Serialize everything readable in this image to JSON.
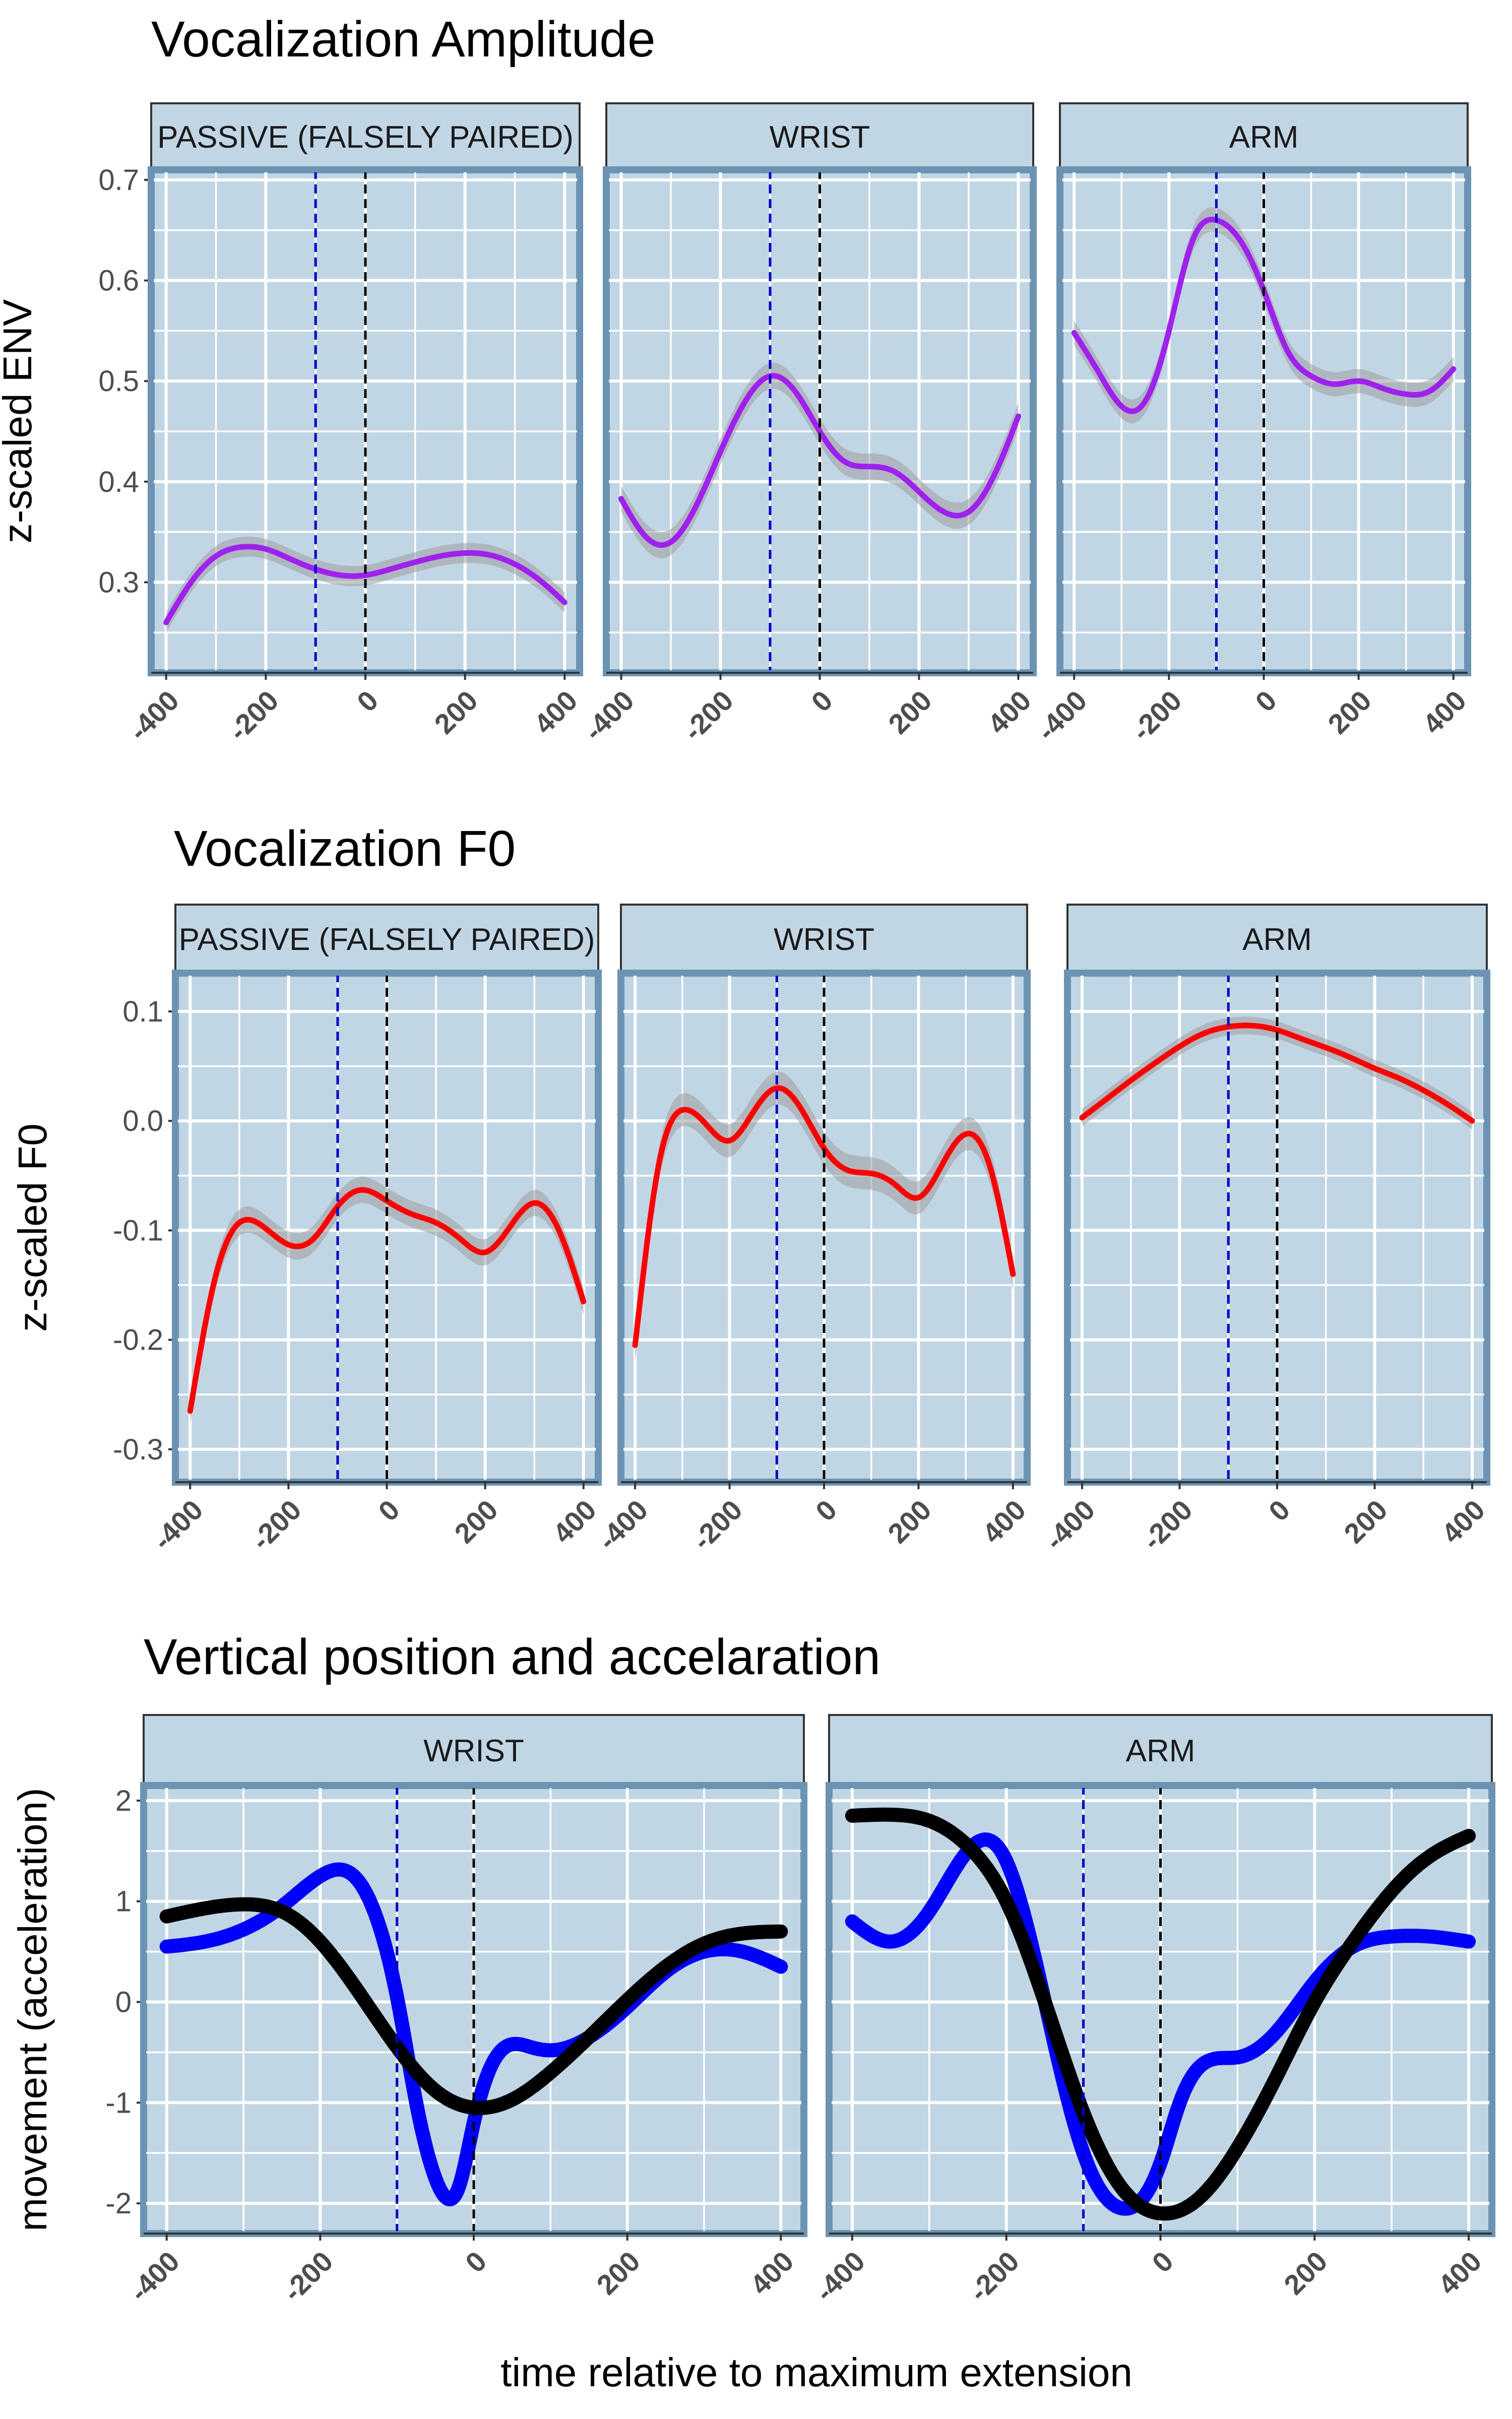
{
  "figure": {
    "xlabel": "time relative to maximum extension",
    "colors": {
      "panel_bg": "#c0d6e4",
      "panel_border": "#6b93b3",
      "strip_bg": "#c0d6e4",
      "grid": "#ffffff",
      "ribbon": "#9e9e9e",
      "blue_marker": "#0000d0",
      "black_marker": "#000000"
    }
  },
  "chart_data": [
    {
      "type": "line",
      "title": "Vocalization Amplitude",
      "ylabel": "z-scaled ENV",
      "xlim": [
        -430,
        430
      ],
      "ylim": [
        0.21,
        0.71
      ],
      "yticks": [
        0.3,
        0.4,
        0.5,
        0.6,
        0.7
      ],
      "ytick_labels": [
        "0.3",
        "0.4",
        "0.5",
        "0.6",
        "0.7"
      ],
      "xticks": [
        -400,
        -200,
        0,
        200,
        400
      ],
      "xtick_labels": [
        "-400",
        "-200",
        "0",
        "200",
        "400"
      ],
      "vlines": [
        {
          "x": -100,
          "color": "blue"
        },
        {
          "x": 0,
          "color": "black"
        }
      ],
      "series_color": "#a020f0",
      "line_width": 11,
      "facets": [
        {
          "label": "PASSIVE (FALSELY PAIRED)",
          "x": [
            -400,
            -350,
            -300,
            -250,
            -200,
            -150,
            -100,
            -50,
            0,
            50,
            100,
            150,
            200,
            250,
            300,
            350,
            400
          ],
          "y": [
            0.26,
            0.3,
            0.326,
            0.335,
            0.333,
            0.323,
            0.313,
            0.307,
            0.307,
            0.313,
            0.32,
            0.326,
            0.329,
            0.327,
            0.318,
            0.302,
            0.28
          ],
          "se": 0.01
        },
        {
          "label": "WRIST",
          "x": [
            -400,
            -350,
            -300,
            -250,
            -200,
            -150,
            -100,
            -50,
            0,
            50,
            100,
            150,
            200,
            250,
            300,
            350,
            400
          ],
          "y": [
            0.383,
            0.345,
            0.34,
            0.375,
            0.43,
            0.48,
            0.505,
            0.49,
            0.45,
            0.42,
            0.415,
            0.41,
            0.39,
            0.37,
            0.37,
            0.405,
            0.465
          ],
          "se": 0.013
        },
        {
          "label": "ARM",
          "x": [
            -400,
            -350,
            -300,
            -250,
            -200,
            -150,
            -100,
            -50,
            0,
            50,
            100,
            150,
            200,
            250,
            300,
            350,
            400
          ],
          "y": [
            0.548,
            0.51,
            0.475,
            0.48,
            0.55,
            0.64,
            0.66,
            0.64,
            0.59,
            0.53,
            0.505,
            0.497,
            0.5,
            0.493,
            0.487,
            0.49,
            0.512
          ],
          "se": 0.012
        }
      ]
    },
    {
      "type": "line",
      "title": "Vocalization F0",
      "ylabel": "z-scaled F0",
      "xlim": [
        -430,
        430
      ],
      "ylim": [
        -0.33,
        0.135
      ],
      "yticks": [
        -0.3,
        -0.2,
        -0.1,
        0.0,
        0.1
      ],
      "ytick_labels": [
        "-0.3",
        "-0.2",
        "-0.1",
        "0.0",
        "0.1"
      ],
      "xticks": [
        -400,
        -200,
        0,
        200,
        400
      ],
      "xtick_labels": [
        "-400",
        "-200",
        "0",
        "200",
        "400"
      ],
      "vlines": [
        {
          "x": -100,
          "color": "blue"
        },
        {
          "x": 0,
          "color": "black"
        }
      ],
      "series_color": "#ff0000",
      "line_width": 11,
      "facets": [
        {
          "label": "PASSIVE (FALSELY PAIRED)",
          "x": [
            -400,
            -350,
            -300,
            -250,
            -200,
            -150,
            -100,
            -50,
            0,
            50,
            100,
            150,
            200,
            250,
            300,
            350,
            400
          ],
          "y": [
            -0.265,
            -0.145,
            -0.093,
            -0.097,
            -0.113,
            -0.108,
            -0.078,
            -0.063,
            -0.073,
            -0.085,
            -0.093,
            -0.108,
            -0.12,
            -0.097,
            -0.075,
            -0.1,
            -0.165
          ],
          "se": 0.012
        },
        {
          "label": "WRIST",
          "x": [
            -400,
            -350,
            -300,
            -250,
            -200,
            -150,
            -100,
            -50,
            0,
            50,
            100,
            150,
            200,
            250,
            300,
            350,
            400
          ],
          "y": [
            -0.205,
            -0.04,
            0.01,
            -0.003,
            -0.018,
            0.008,
            0.03,
            0.012,
            -0.025,
            -0.045,
            -0.048,
            -0.058,
            -0.07,
            -0.04,
            -0.012,
            -0.04,
            -0.14
          ],
          "se": 0.015
        },
        {
          "label": "ARM",
          "x": [
            -400,
            -350,
            -300,
            -250,
            -200,
            -150,
            -100,
            -50,
            0,
            50,
            100,
            150,
            200,
            250,
            300,
            350,
            400
          ],
          "y": [
            0.003,
            0.02,
            0.037,
            0.053,
            0.068,
            0.08,
            0.086,
            0.087,
            0.083,
            0.075,
            0.067,
            0.058,
            0.048,
            0.039,
            0.028,
            0.015,
            0.0
          ],
          "se": 0.008
        }
      ]
    },
    {
      "type": "line",
      "title": "Vertical position and accelaration",
      "ylabel": "movement (acceleration)",
      "xlim": [
        -430,
        430
      ],
      "ylim": [
        -2.3,
        2.15
      ],
      "yticks": [
        -2,
        -1,
        0,
        1,
        2
      ],
      "ytick_labels": [
        "-2",
        "-1",
        "0",
        "1",
        "2"
      ],
      "xticks": [
        -400,
        -200,
        0,
        200,
        400
      ],
      "xtick_labels": [
        "-400",
        "-200",
        "0",
        "200",
        "400"
      ],
      "vlines": [
        {
          "x": -100,
          "color": "blue"
        },
        {
          "x": 0,
          "color": "black"
        }
      ],
      "line_width": 28,
      "facets": [
        {
          "label": "WRIST",
          "series": [
            {
              "color": "#0000ff",
              "x": [
                -400,
                -350,
                -300,
                -250,
                -200,
                -150,
                -125,
                -100,
                -75,
                -50,
                -35,
                -20,
                0,
                25,
                50,
                75,
                100,
                150,
                200,
                250,
                300,
                350,
                400
              ],
              "y": [
                0.55,
                0.6,
                0.72,
                0.95,
                1.25,
                1.2,
                0.8,
                0.05,
                -1.0,
                -1.75,
                -1.95,
                -1.85,
                -1.2,
                -0.6,
                -0.42,
                -0.45,
                -0.48,
                -0.35,
                -0.05,
                0.3,
                0.5,
                0.5,
                0.35
              ]
            },
            {
              "color": "#000000",
              "x": [
                -400,
                -350,
                -300,
                -250,
                -200,
                -150,
                -100,
                -50,
                0,
                50,
                100,
                150,
                200,
                250,
                300,
                350,
                400
              ],
              "y": [
                0.85,
                0.93,
                0.97,
                0.9,
                0.6,
                0.1,
                -0.45,
                -0.88,
                -1.05,
                -0.97,
                -0.7,
                -0.35,
                0.02,
                0.35,
                0.58,
                0.68,
                0.7
              ]
            }
          ]
        },
        {
          "label": "ARM",
          "series": [
            {
              "color": "#0000ff",
              "x": [
                -400,
                -350,
                -300,
                -250,
                -220,
                -200,
                -150,
                -100,
                -50,
                0,
                25,
                50,
                100,
                150,
                200,
                250,
                300,
                350,
                400
              ],
              "y": [
                0.8,
                0.6,
                0.9,
                1.5,
                1.6,
                1.4,
                0.0,
                -1.5,
                -2.05,
                -1.6,
                -1.0,
                -0.65,
                -0.55,
                -0.3,
                0.2,
                0.55,
                0.65,
                0.65,
                0.6
              ]
            },
            {
              "color": "#000000",
              "x": [
                -400,
                -350,
                -300,
                -250,
                -200,
                -150,
                -100,
                -50,
                0,
                50,
                100,
                150,
                200,
                250,
                300,
                350,
                400
              ],
              "y": [
                1.85,
                1.86,
                1.8,
                1.55,
                1.0,
                0.0,
                -1.1,
                -1.85,
                -2.1,
                -1.95,
                -1.45,
                -0.75,
                0.0,
                0.6,
                1.1,
                1.45,
                1.65
              ]
            }
          ]
        }
      ]
    }
  ]
}
